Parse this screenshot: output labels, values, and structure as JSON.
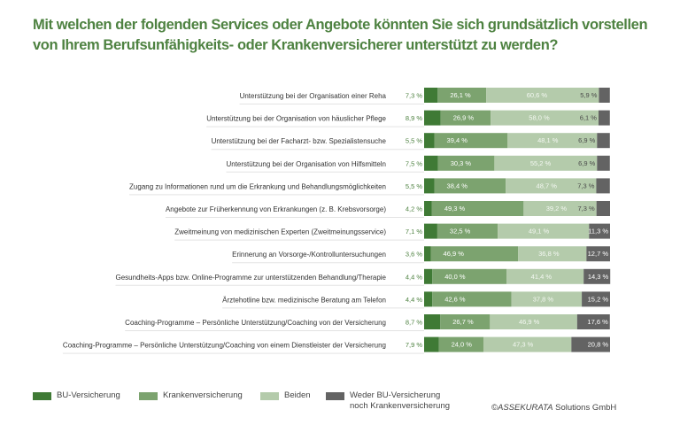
{
  "title": {
    "line1": "Mit welchen der folgenden Services oder Angebote könnten Sie sich grundsätzlich vorstellen",
    "line2": "von Ihrem Berufsunfähigkeits- oder Krankenversicherer unterstützt zu werden?"
  },
  "chart_data": {
    "type": "bar",
    "orientation": "horizontal",
    "stacked": true,
    "normalized": "100%",
    "title": "Mit welchen der folgenden Services oder Angebote könnten Sie sich grundsätzlich vorstellen von Ihrem Berufsunfähigkeits- oder Krankenversicherer unterstützt zu werden?",
    "xlabel": "",
    "ylabel": "",
    "unit": "%",
    "grid": false,
    "legend_position": "bottom",
    "categories": [
      "Unterstützung bei der Organisation einer Reha",
      "Unterstützung bei der Organisation von häuslicher Pflege",
      "Unterstützung bei der Facharzt- bzw. Spezialistensuche",
      "Unterstützung bei der Organisation von Hilfsmitteln",
      "Zugang zu Informationen rund um die Erkrankung und Behandlungsmöglichkeiten",
      "Angebote zur Früherkennung von Erkrankungen (z. B. Krebsvorsorge)",
      "Zweitmeinung von medizinischen Experten (Zweitmeinungsservice)",
      "Erinnerung an Vorsorge-/Kontrolluntersuchungen",
      "Gesundheits-Apps bzw. Online-Programme zur unterstützenden Behandlung/Therapie",
      "Ärztehotline bzw. medizinische Beratung am Telefon",
      "Coaching-Programme – Persönliche Unterstützung/Coaching von der Versicherung",
      "Coaching-Programme – Persönliche Unterstützung/Coaching von einem Dienstleister der Versicherung"
    ],
    "series": [
      {
        "name": "BU-Versicherung",
        "color": "#3f7a35",
        "values": [
          7.3,
          8.9,
          5.5,
          7.5,
          5.5,
          4.2,
          7.1,
          3.6,
          4.4,
          4.4,
          8.7,
          7.9
        ],
        "labels": [
          "7,3 %",
          "8,9 %",
          "5,5 %",
          "7,5 %",
          "5,5 %",
          "4,2 %",
          "7,1 %",
          "3,6 %",
          "4,4 %",
          "4,4 %",
          "8,7 %",
          "7,9 %"
        ]
      },
      {
        "name": "Krankenversicherung",
        "color": "#7ca36f",
        "values": [
          26.1,
          26.9,
          39.4,
          30.3,
          38.4,
          49.3,
          32.5,
          46.9,
          40.0,
          42.6,
          26.7,
          24.0
        ],
        "labels": [
          "26,1 %",
          "26,9 %",
          "39,4 %",
          "30,3 %",
          "38,4 %",
          "49,3 %",
          "32,5 %",
          "46,9 %",
          "40,0 %",
          "42,6 %",
          "26,7 %",
          "24,0 %"
        ]
      },
      {
        "name": "Beiden",
        "color": "#b4cbab",
        "values": [
          60.6,
          58.0,
          48.1,
          55.2,
          48.7,
          39.2,
          49.1,
          36.8,
          41.4,
          37.8,
          46.9,
          47.3
        ],
        "labels": [
          "60,6 %",
          "58,0 %",
          "48,1 %",
          "55,2 %",
          "48,7 %",
          "39,2 %",
          "49,1 %",
          "36,8 %",
          "41,4 %",
          "37,8 %",
          "46,9 %",
          "47,3 %"
        ]
      },
      {
        "name": "Weder BU-Versicherung noch Krankenversicherung",
        "color": "#636363",
        "values": [
          5.9,
          6.1,
          6.9,
          6.9,
          7.3,
          7.3,
          11.3,
          12.7,
          14.3,
          15.2,
          17.6,
          20.8
        ],
        "labels": [
          "5,9 %",
          "6,1 %",
          "6,9 %",
          "6,9 %",
          "7,3 %",
          "7,3 %",
          "11,3 %",
          "12,7 %",
          "14,3 %",
          "15,2 %",
          "17,6 %",
          "20,8 %"
        ]
      }
    ],
    "xlim": [
      0,
      100
    ]
  },
  "legend": [
    {
      "label_lines": [
        "BU-Versicherung"
      ],
      "color": "#3f7a35"
    },
    {
      "label_lines": [
        "Krankenversicherung"
      ],
      "color": "#7ca36f"
    },
    {
      "label_lines": [
        "Beiden"
      ],
      "color": "#b4cbab"
    },
    {
      "label_lines": [
        "Weder BU-Versicherung",
        "noch Krankenversicherung"
      ],
      "color": "#636363"
    }
  ],
  "footer": {
    "copyright_symbol": "©",
    "brand": "ASSEKURATA",
    "suffix": " Solutions GmbH"
  }
}
